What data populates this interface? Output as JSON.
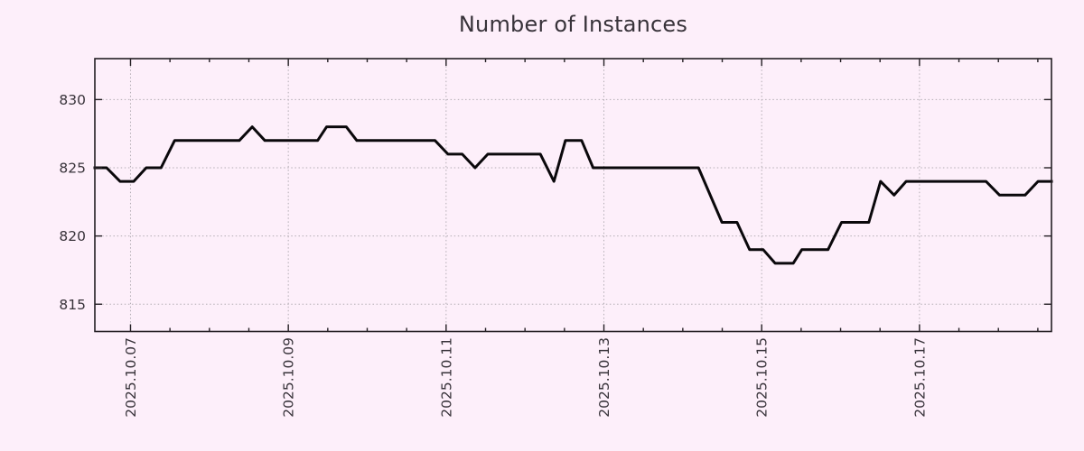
{
  "title": "Number of Instances",
  "colors": {
    "background": "#fdeffa",
    "grid": "#b3adb4",
    "frame": "#241f24",
    "line": "#0a080b",
    "text": "#38333a"
  },
  "chart_data": {
    "type": "line",
    "title": "Number of Instances",
    "grid": true,
    "legend": "none",
    "x_epoch": "2025-10-06 00:00",
    "x_unit": "days",
    "xlim": [
      0.548,
      12.673
    ],
    "ylim": [
      813,
      833
    ],
    "y_ticks": [
      815,
      820,
      825,
      830
    ],
    "x_major_ticks": [
      {
        "day": 1,
        "label": "2025.10.07"
      },
      {
        "day": 3,
        "label": "2025.10.09"
      },
      {
        "day": 5,
        "label": "2025.10.11"
      },
      {
        "day": 7,
        "label": "2025.10.13"
      },
      {
        "day": 9,
        "label": "2025.10.15"
      },
      {
        "day": 11,
        "label": "2025.10.17"
      }
    ],
    "x_minor_step": 0.5,
    "series": [
      {
        "name": "instances",
        "points": [
          [
            0.548,
            825
          ],
          [
            0.697,
            825
          ],
          [
            0.868,
            824
          ],
          [
            1.04,
            824
          ],
          [
            1.2,
            825
          ],
          [
            1.387,
            825
          ],
          [
            1.559,
            827
          ],
          [
            2.379,
            827
          ],
          [
            2.543,
            828
          ],
          [
            2.703,
            827
          ],
          [
            3.372,
            827
          ],
          [
            3.486,
            828
          ],
          [
            3.734,
            828
          ],
          [
            3.868,
            827
          ],
          [
            4.86,
            827
          ],
          [
            5.024,
            826
          ],
          [
            5.204,
            826
          ],
          [
            5.367,
            825
          ],
          [
            5.528,
            826
          ],
          [
            6.195,
            826
          ],
          [
            6.367,
            824
          ],
          [
            6.512,
            827
          ],
          [
            6.718,
            827
          ],
          [
            6.864,
            825
          ],
          [
            8.198,
            825
          ],
          [
            8.496,
            821
          ],
          [
            8.687,
            821
          ],
          [
            8.847,
            819
          ],
          [
            9.019,
            819
          ],
          [
            9.171,
            818
          ],
          [
            9.4,
            818
          ],
          [
            9.508,
            819
          ],
          [
            9.84,
            819
          ],
          [
            10.012,
            821
          ],
          [
            10.358,
            821
          ],
          [
            10.507,
            824
          ],
          [
            10.679,
            823
          ],
          [
            10.831,
            824
          ],
          [
            11.843,
            824
          ],
          [
            12.015,
            823
          ],
          [
            12.339,
            823
          ],
          [
            12.502,
            824
          ],
          [
            12.673,
            824
          ]
        ]
      }
    ]
  }
}
